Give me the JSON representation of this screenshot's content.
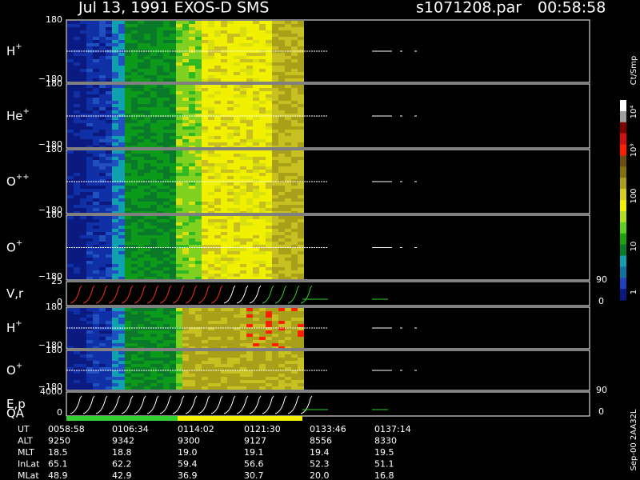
{
  "header": {
    "title": "Jul 13, 1991   EXOS-D SMS",
    "file": "s1071208.par",
    "time": "00:58:58"
  },
  "panels": [
    {
      "label": {
        "base": "H",
        "sup": "+"
      },
      "top": "180",
      "bottom": "−180"
    },
    {
      "label": {
        "base": "He",
        "sup": "+"
      },
      "top": "180",
      "bottom": "−180"
    },
    {
      "label": {
        "base": "O",
        "sup": "++"
      },
      "top": "180",
      "bottom": "−180"
    },
    {
      "label": {
        "base": "O",
        "sup": "+"
      },
      "top": "180",
      "bottom": "−180"
    },
    {
      "label": {
        "base": "V,r",
        "sup": ""
      },
      "top": "25",
      "bottom": "0",
      "right_top": "90",
      "right_bottom": "0"
    },
    {
      "label": {
        "base": "H",
        "sup": "+"
      },
      "top": "180",
      "bottom": "−180"
    },
    {
      "label": {
        "base": "O",
        "sup": "+"
      },
      "top": "180",
      "bottom": "−180"
    },
    {
      "label": {
        "base": "E,p",
        "sup": ""
      },
      "label2": "QA",
      "top": "4000",
      "bottom": "0",
      "right_top": "90",
      "right_bottom": "0"
    }
  ],
  "colorbar": {
    "unit": "Ct/Smp",
    "labels": [
      "10⁴",
      "10³",
      "100",
      "10",
      "1"
    ]
  },
  "table": {
    "rows": [
      [
        "UT",
        "0058:58",
        "0106:34",
        "0114:02",
        "0121:30",
        "0133:46",
        "0137:14"
      ],
      [
        "ALT",
        "9250",
        "9342",
        "9300",
        "9127",
        "8556",
        "8330"
      ],
      [
        "MLT",
        "18.5",
        "18.8",
        "19.0",
        "19.1",
        "19.4",
        "19.5"
      ],
      [
        "InLat",
        "65.1",
        "62.2",
        "59.4",
        "56.6",
        "52.3",
        "51.1"
      ],
      [
        "MLat",
        "48.9",
        "42.9",
        "36.9",
        "30.7",
        "20.0",
        "16.8"
      ]
    ]
  },
  "footer": "Sep-00  2AA32L"
}
